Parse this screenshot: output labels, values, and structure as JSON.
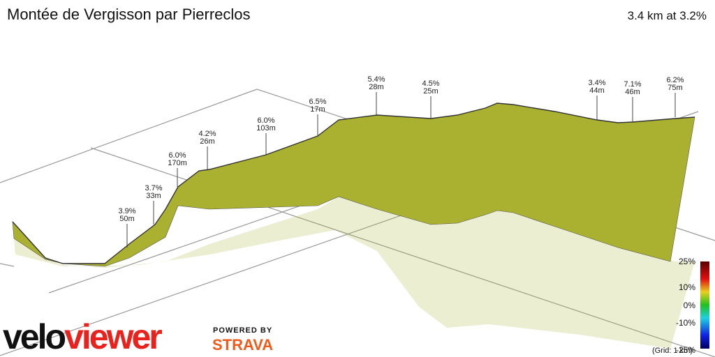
{
  "header": {
    "title": "Montée de Vergisson par Pierreclos",
    "summary": "3.4 km at 3.2%"
  },
  "annotations": [
    {
      "grade": "3.9%",
      "length": "50m"
    },
    {
      "grade": "3.7%",
      "length": "33m"
    },
    {
      "grade": "6.0%",
      "length": "170m"
    },
    {
      "grade": "4.2%",
      "length": "26m"
    },
    {
      "grade": "6.0%",
      "length": "103m"
    },
    {
      "grade": "6.5%",
      "length": "17m"
    },
    {
      "grade": "5.4%",
      "length": "28m"
    },
    {
      "grade": "4.5%",
      "length": "25m"
    },
    {
      "grade": "3.4%",
      "length": "44m"
    },
    {
      "grade": "7.1%",
      "length": "46m"
    },
    {
      "grade": "6.2%",
      "length": "75m"
    }
  ],
  "legend": {
    "ticks": [
      "25%",
      "10%",
      "0%",
      "-10%",
      "-25%"
    ],
    "grid_note": "(Grid: 1 km)"
  },
  "logo": {
    "velo": "velo",
    "viewer": "viewer",
    "powered_by": "POWERED BY",
    "strava": "STRAVA"
  }
}
